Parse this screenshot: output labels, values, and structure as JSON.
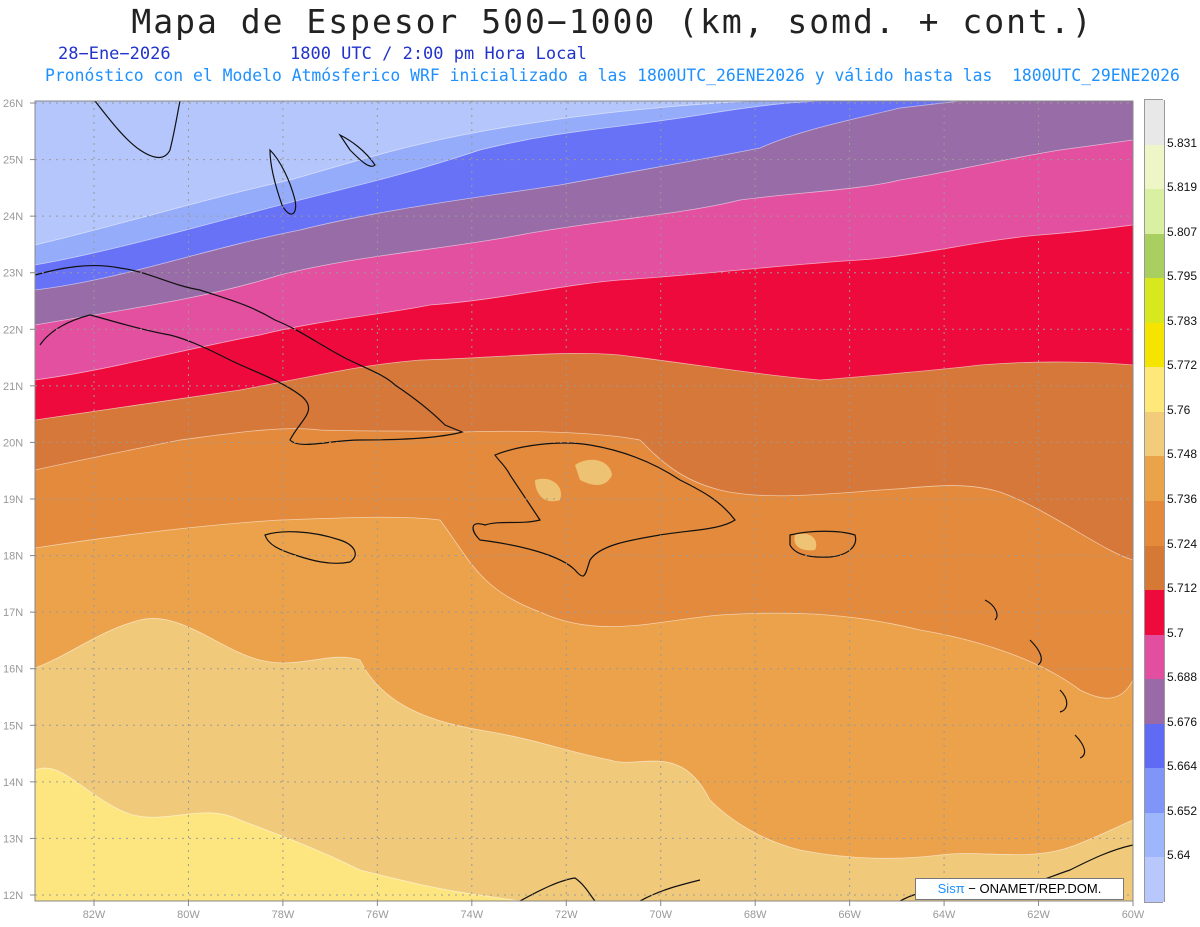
{
  "title": "Mapa de Espesor 500−1000 (km, somd. + cont.)",
  "date": "28−Ene−2026",
  "time": "1800 UTC / 2:00 pm Hora Local",
  "forecast_line": "Pronóstico con el Modelo Atmósferico WRF inicializado a las 1800UTC_26ENE2026 y válido hasta las  1800UTC_29ENE2026",
  "credit": {
    "logo": "Sisπ",
    "text": "− ONAMET/REP.DOM."
  },
  "axes": {
    "lon_labels": [
      "82W",
      "80W",
      "78W",
      "76W",
      "74W",
      "72W",
      "70W",
      "68W",
      "66W",
      "64W",
      "62W",
      "60W"
    ],
    "lat_labels": [
      "26N",
      "25N",
      "24N",
      "23N",
      "22N",
      "21N",
      "20N",
      "19N",
      "18N",
      "17N",
      "16N",
      "15N",
      "14N",
      "13N",
      "12N"
    ]
  },
  "colorbar": {
    "labels": [
      "5.831",
      "5.819",
      "5.807",
      "5.795",
      "5.783",
      "5.772",
      "5.76",
      "5.748",
      "5.736",
      "5.724",
      "5.712",
      "5.7",
      "5.688",
      "5.676",
      "5.664",
      "5.652",
      "5.64"
    ],
    "colors": [
      "#e8e8e8",
      "#eef6c8",
      "#d9f0a3",
      "#a8cf60",
      "#d8e81e",
      "#f5e400",
      "#ffe87a",
      "#f2cc7a",
      "#eba34a",
      "#e5893a",
      "#d67935",
      "#ee0a3c",
      "#e34fa0",
      "#9a6aa8",
      "#5f6af5",
      "#7f95f8",
      "#9eb6fb",
      "#b8c8fc"
    ]
  },
  "map_colors": {
    "band_lightest_blue": "#b4c6fc",
    "band_light_blue": "#95acfa",
    "band_blue": "#6772f6",
    "band_purple": "#986ca6",
    "band_pink": "#e350a0",
    "band_red": "#ee0a3c",
    "band_dark_orange": "#d5783a",
    "band_orange": "#e48a3c",
    "band_light_orange": "#eba24a",
    "band_tan": "#f0c97a",
    "band_yellow": "#fde680"
  }
}
